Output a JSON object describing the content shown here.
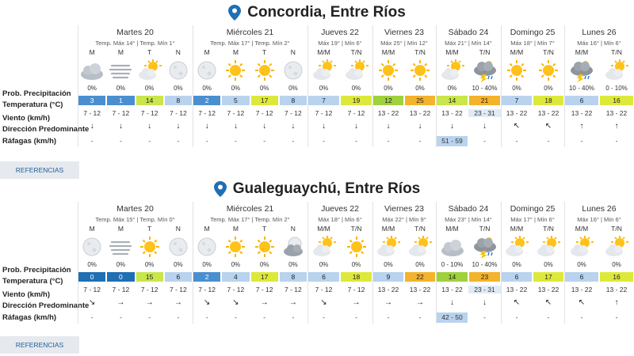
{
  "references_label": "REFERENCIAS",
  "row_labels": {
    "precip": "Prob. Precipitación",
    "temp": "Temperatura (°C)",
    "wind": "Viento (km/h)",
    "direction": "Dirección Predominante",
    "gusts": "Ráfagas (km/h)"
  },
  "temp_colors": {
    "c0": "#1f6fb5",
    "c1": "#4a8fd0",
    "c2": "#b9d3ee",
    "c3": "#dde93a",
    "c4": "#c9e64a",
    "c5": "#f3b32c",
    "c6": "#9fd13c"
  },
  "cities": [
    {
      "name": "Concordia, Entre Ríos",
      "days": [
        {
          "name": "Martes 20",
          "temps": "Temp. Máx 14° | Temp. Mín 1°",
          "periods": [
            {
              "label": "M",
              "icon": "cloudy-icon",
              "prob": "0%",
              "temp": "3",
              "tc": "c1",
              "wind": "7 - 12",
              "dir": "↓",
              "gust": "-"
            },
            {
              "label": "M",
              "icon": "fog-icon",
              "prob": "0%",
              "temp": "1",
              "tc": "c1",
              "wind": "7 - 12",
              "dir": "↓",
              "gust": "-"
            },
            {
              "label": "T",
              "icon": "sun-cloud-icon",
              "prob": "0%",
              "temp": "14",
              "tc": "c4",
              "wind": "7 - 12",
              "dir": "↓",
              "gust": "-"
            },
            {
              "label": "N",
              "icon": "moon-icon",
              "prob": "0%",
              "temp": "8",
              "tc": "c2",
              "wind": "7 - 12",
              "dir": "↓",
              "gust": "-"
            }
          ]
        },
        {
          "name": "Miércoles 21",
          "temps": "Temp. Máx 17° | Temp. Mín 2°",
          "periods": [
            {
              "label": "M",
              "icon": "moon-icon",
              "prob": "0%",
              "temp": "2",
              "tc": "c1",
              "wind": "7 - 12",
              "dir": "↓",
              "gust": "-"
            },
            {
              "label": "M",
              "icon": "sun-icon",
              "prob": "0%",
              "temp": "5",
              "tc": "c2",
              "wind": "7 - 12",
              "dir": "↓",
              "gust": "-"
            },
            {
              "label": "T",
              "icon": "sun-icon",
              "prob": "0%",
              "temp": "17",
              "tc": "c3",
              "wind": "7 - 12",
              "dir": "↓",
              "gust": "-"
            },
            {
              "label": "N",
              "icon": "moon-icon",
              "prob": "0%",
              "temp": "8",
              "tc": "c2",
              "wind": "7 - 12",
              "dir": "↓",
              "gust": "-"
            }
          ]
        },
        {
          "name": "Jueves 22",
          "temps": "Máx 19° | Mín 6°",
          "periods": [
            {
              "label": "M/M",
              "icon": "sun-cloud-icon",
              "prob": "0%",
              "temp": "7",
              "tc": "c2",
              "wind": "7 - 12",
              "dir": "↓",
              "gust": "-"
            },
            {
              "label": "T/N",
              "icon": "sun-cloud-icon",
              "prob": "0%",
              "temp": "19",
              "tc": "c3",
              "wind": "7 - 12",
              "dir": "↓",
              "gust": "-"
            }
          ]
        },
        {
          "name": "Viernes 23",
          "temps": "Máx 25° | Mín 12°",
          "periods": [
            {
              "label": "M/M",
              "icon": "sun-icon",
              "prob": "0%",
              "temp": "12",
              "tc": "c6",
              "wind": "13 - 22",
              "dir": "↓",
              "gust": "-"
            },
            {
              "label": "T/N",
              "icon": "sun-icon",
              "prob": "0%",
              "temp": "25",
              "tc": "c5",
              "wind": "13 - 22",
              "dir": "↓",
              "gust": "-"
            }
          ]
        },
        {
          "name": "Sábado 24",
          "temps": "Máx 21° | Mín 14°",
          "periods": [
            {
              "label": "M/M",
              "icon": "sun-cloud-icon",
              "prob": "0%",
              "temp": "14",
              "tc": "c4",
              "wind": "13 - 22",
              "dir": "↓",
              "gust": "51 - 59",
              "gust_hi": true
            },
            {
              "label": "T/N",
              "icon": "storm-icon",
              "prob": "10 - 40%",
              "temp": "21",
              "tc": "c5",
              "wind": "23 - 31",
              "wind_hi": true,
              "dir": "↓",
              "gust": "-"
            }
          ]
        },
        {
          "name": "Domingo 25",
          "temps": "Máx 18° | Mín 7°",
          "periods": [
            {
              "label": "M/M",
              "icon": "sun-icon",
              "prob": "0%",
              "temp": "7",
              "tc": "c2",
              "wind": "13 - 22",
              "dir": "↖",
              "gust": "-"
            },
            {
              "label": "T/N",
              "icon": "sun-icon",
              "prob": "0%",
              "temp": "18",
              "tc": "c3",
              "wind": "13 - 22",
              "dir": "↖",
              "gust": "-"
            }
          ]
        },
        {
          "name": "Lunes 26",
          "temps": "Máx 16° | Mín 6°",
          "periods": [
            {
              "label": "M/M",
              "icon": "storm-icon",
              "prob": "10 - 40%",
              "temp": "6",
              "tc": "c2",
              "wind": "13 - 22",
              "dir": "↑",
              "gust": "-"
            },
            {
              "label": "T/N",
              "icon": "sun-cloud-icon",
              "prob": "0 - 10%",
              "temp": "16",
              "tc": "c3",
              "wind": "13 - 22",
              "dir": "↑",
              "gust": "-"
            }
          ]
        }
      ]
    },
    {
      "name": "Gualeguaychú, Entre Ríos",
      "days": [
        {
          "name": "Martes 20",
          "temps": "Temp. Máx 15° | Temp. Mín 0°",
          "periods": [
            {
              "label": "M",
              "icon": "moon-icon",
              "prob": "0%",
              "temp": "0",
              "tc": "c0",
              "wind": "7 - 12",
              "dir": "↘",
              "gust": "-"
            },
            {
              "label": "M",
              "icon": "fog-icon",
              "prob": "0%",
              "temp": "0",
              "tc": "c0",
              "wind": "7 - 12",
              "dir": "→",
              "gust": "-"
            },
            {
              "label": "T",
              "icon": "sun-icon",
              "prob": "0%",
              "temp": "15",
              "tc": "c4",
              "wind": "7 - 12",
              "dir": "→",
              "gust": "-"
            },
            {
              "label": "N",
              "icon": "moon-icon",
              "prob": "0%",
              "temp": "6",
              "tc": "c2",
              "wind": "7 - 12",
              "dir": "→",
              "gust": "-"
            }
          ]
        },
        {
          "name": "Miércoles 21",
          "temps": "Temp. Máx 17° | Temp. Mín 2°",
          "periods": [
            {
              "label": "M",
              "icon": "moon-icon",
              "prob": "0%",
              "temp": "2",
              "tc": "c1",
              "wind": "7 - 12",
              "dir": "↘",
              "gust": "-"
            },
            {
              "label": "M",
              "icon": "sun-icon",
              "prob": "0%",
              "temp": "4",
              "tc": "c2",
              "wind": "7 - 12",
              "dir": "↘",
              "gust": "-"
            },
            {
              "label": "T",
              "icon": "sun-icon",
              "prob": "0%",
              "temp": "17",
              "tc": "c3",
              "wind": "7 - 12",
              "dir": "→",
              "gust": "-"
            },
            {
              "label": "N",
              "icon": "moon-cloud-icon",
              "prob": "0%",
              "temp": "8",
              "tc": "c2",
              "wind": "7 - 12",
              "dir": "→",
              "gust": "-"
            }
          ]
        },
        {
          "name": "Jueves 22",
          "temps": "Máx 18° | Mín 6°",
          "periods": [
            {
              "label": "M/M",
              "icon": "sun-cloud-icon",
              "prob": "0%",
              "temp": "6",
              "tc": "c2",
              "wind": "7 - 12",
              "dir": "↘",
              "gust": "-"
            },
            {
              "label": "T/N",
              "icon": "sun-icon",
              "prob": "0%",
              "temp": "18",
              "tc": "c3",
              "wind": "7 - 12",
              "dir": "→",
              "gust": "-"
            }
          ]
        },
        {
          "name": "Viernes 23",
          "temps": "Máx 22° | Mín 9°",
          "periods": [
            {
              "label": "M/M",
              "icon": "sun-cloud-icon",
              "prob": "0%",
              "temp": "9",
              "tc": "c2",
              "wind": "13 - 22",
              "dir": "→",
              "gust": "-"
            },
            {
              "label": "T/N",
              "icon": "sun-cloud-icon",
              "prob": "0%",
              "temp": "22",
              "tc": "c5",
              "wind": "13 - 22",
              "dir": "→",
              "gust": "-"
            }
          ]
        },
        {
          "name": "Sábado 24",
          "temps": "Máx 23° | Mín 14°",
          "periods": [
            {
              "label": "M/M",
              "icon": "cloudy-icon",
              "prob": "0 - 10%",
              "temp": "14",
              "tc": "c6",
              "wind": "13 - 22",
              "dir": "↓",
              "gust": "42 - 50",
              "gust_hi": true
            },
            {
              "label": "T/N",
              "icon": "storm-icon",
              "prob": "10 - 40%",
              "temp": "23",
              "tc": "c5",
              "wind": "23 - 31",
              "wind_hi": true,
              "dir": "↓",
              "gust": "-"
            }
          ]
        },
        {
          "name": "Domingo 25",
          "temps": "Máx 17° | Mín 6°",
          "periods": [
            {
              "label": "M/M",
              "icon": "sun-cloud-icon",
              "prob": "0%",
              "temp": "6",
              "tc": "c2",
              "wind": "13 - 22",
              "dir": "↖",
              "gust": "-"
            },
            {
              "label": "T/N",
              "icon": "sun-cloud-icon",
              "prob": "0%",
              "temp": "17",
              "tc": "c3",
              "wind": "13 - 22",
              "dir": "↖",
              "gust": "-"
            }
          ]
        },
        {
          "name": "Lunes 26",
          "temps": "Máx 16° | Mín 6°",
          "periods": [
            {
              "label": "M/M",
              "icon": "sun-cloud-icon",
              "prob": "0%",
              "temp": "6",
              "tc": "c2",
              "wind": "13 - 22",
              "dir": "↖",
              "gust": "-"
            },
            {
              "label": "T/N",
              "icon": "sun-cloud-icon",
              "prob": "0%",
              "temp": "16",
              "tc": "c3",
              "wind": "13 - 22",
              "dir": "↑",
              "gust": "-"
            }
          ]
        }
      ]
    }
  ]
}
